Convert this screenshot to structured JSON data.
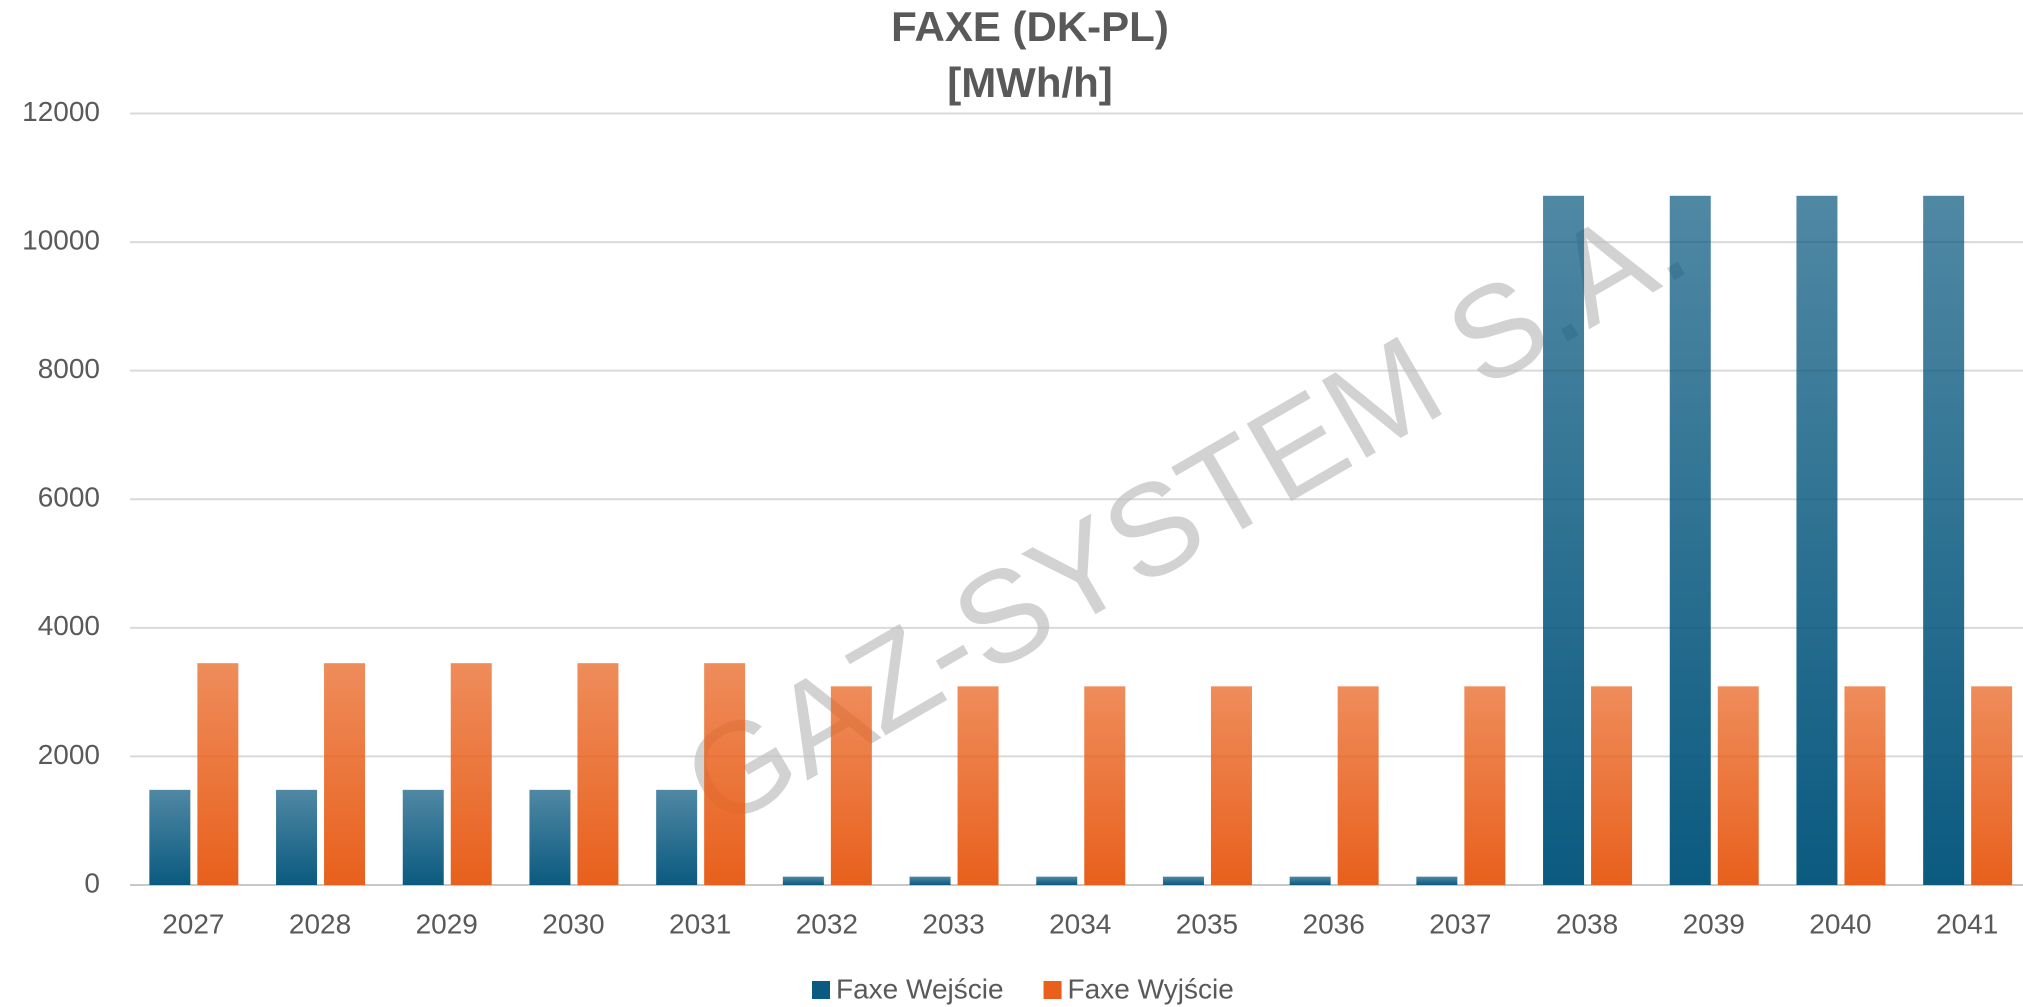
{
  "chart_data": {
    "type": "bar",
    "title": "FAXE (DK-PL)",
    "subtitle": "[MWh/h]",
    "watermark": "GAZ-SYSTEM S.A.",
    "categories": [
      "2027",
      "2028",
      "2029",
      "2030",
      "2031",
      "2032",
      "2033",
      "2034",
      "2035",
      "2036",
      "2037",
      "2038",
      "2039",
      "2040",
      "2041"
    ],
    "series": [
      {
        "name": "Faxe Wejście",
        "color": "#0b5a80",
        "values": [
          1480,
          1480,
          1480,
          1480,
          1480,
          130,
          130,
          130,
          130,
          130,
          130,
          10720,
          10720,
          10720,
          10720
        ]
      },
      {
        "name": "Faxe Wyjście",
        "color": "#e8601c",
        "values": [
          3450,
          3450,
          3450,
          3450,
          3450,
          3090,
          3090,
          3090,
          3090,
          3090,
          3090,
          3090,
          3090,
          3090,
          3090
        ]
      }
    ],
    "ylim": [
      0,
      12000
    ],
    "yticks": [
      0,
      2000,
      4000,
      6000,
      8000,
      10000,
      12000
    ],
    "grid": true,
    "legend": "bottom"
  }
}
